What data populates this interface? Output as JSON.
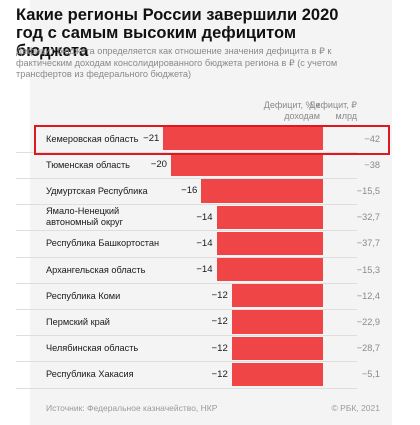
{
  "chart_data": {
    "type": "bar",
    "orientation": "horizontal",
    "title": "Какие регионы России завершили 2020 год с самым высоким дефицитом бюджета",
    "subtitle": "Дефицит бюджета определяется как отношение значения дефицита в ₽ к фактическим доходам консолидированного бюджета региона в ₽ (с учетом трансфертов из федерального бюджета)",
    "column_headers": {
      "percent": "Дефицит, % к доходам",
      "rub": "Дефицит, ₽ млрд"
    },
    "categories": [
      "Кемеровская область",
      "Тюменская область",
      "Удмуртская Республика",
      "Ямало-Ненецкий автономный округ",
      "Республика Башкортостан",
      "Архангельская область",
      "Республика Коми",
      "Пермский край",
      "Челябинская область",
      "Республика Хакасия"
    ],
    "series": [
      {
        "values": [
          -21,
          -20,
          -16,
          -14,
          -14,
          -14,
          -12,
          -12,
          -12,
          -12
        ],
        "labels": [
          "−21",
          "−20",
          "−16",
          "−14",
          "−14",
          "−14",
          "−12",
          "−12",
          "−12",
          "−12"
        ]
      }
    ],
    "rub_labels": [
      "−42",
      "−38",
      "−15,5",
      "−32,7",
      "−37,7",
      "−15,3",
      "−12,4",
      "−22,9",
      "−28,7",
      "−5,1"
    ],
    "highlighted": "Кемеровская область",
    "colors": {
      "bar": "#f04546",
      "highlight": "#e0171e"
    }
  },
  "footer": {
    "source": "Источник: Федеральное казначейство, НКР",
    "copyright": "© РБК, 2021"
  }
}
